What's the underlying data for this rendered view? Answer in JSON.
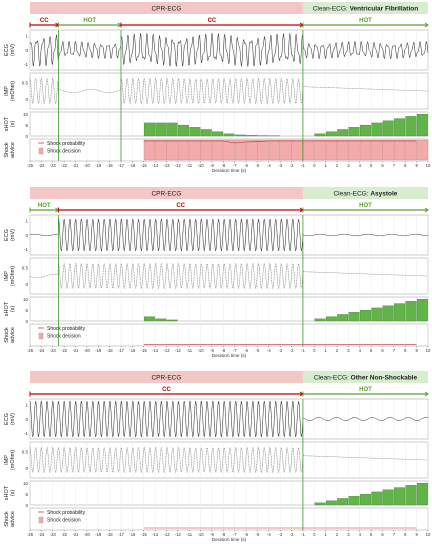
{
  "colors": {
    "cpr_band": "#f4c7c7",
    "clean_band": "#d8ecd0",
    "cc_arrow": "#c00000",
    "hot_arrow": "#5aa02c",
    "bar_fill": "#62b34a",
    "bar_stroke": "#2f7a1f",
    "shock_fill": "#f2aaaa",
    "shock_prob_line": "#b03030",
    "boundary_line": "#39a02a",
    "signal": "#222222",
    "axis": "#555555"
  },
  "chart_data": [
    {
      "type": "line",
      "title_left": "CPR-ECG",
      "title_right_prefix": "Clean-ECG: ",
      "title_right_bold": "Ventricular Fibrillation",
      "segments": [
        {
          "label": "CC",
          "kind": "cc",
          "start": -25,
          "end": -22.5
        },
        {
          "label": "HOT",
          "kind": "hot",
          "start": -22.5,
          "end": -17
        },
        {
          "label": "CC",
          "kind": "cc",
          "start": -17,
          "end": -1
        },
        {
          "label": "HOT",
          "kind": "hot",
          "start": -1,
          "end": 10
        }
      ],
      "boundaries": [
        -22.5,
        -17,
        -1
      ],
      "panels": [
        "ECG\n(mV)",
        "IMP\n(mOhm)",
        "sHOT\n(s)",
        "Shock\nadvice"
      ],
      "ecg_ticks": [
        1,
        0,
        -1
      ],
      "imp_ticks": [
        0.5,
        0
      ],
      "shot_ticks": [
        10,
        5,
        0
      ],
      "shot_bars": {
        "x": [
          -15,
          -14,
          -13,
          -12,
          -11,
          -10,
          -9,
          -8,
          -7,
          -6,
          -5,
          -4,
          0,
          1,
          2,
          3,
          4,
          5,
          6,
          7,
          8,
          9
        ],
        "values": [
          6,
          6,
          6,
          5,
          4,
          3,
          2,
          1,
          0.5,
          0.3,
          0.2,
          0.1,
          1,
          2,
          3,
          4,
          5,
          6,
          7,
          8,
          9,
          10
        ]
      },
      "shock_bars": {
        "x": [
          -15,
          -14,
          -13,
          -12,
          -11,
          -10,
          -9,
          -8,
          -7,
          -6,
          -5,
          -4,
          -3,
          -2,
          -1,
          0,
          1,
          2,
          3,
          4,
          5,
          6,
          7,
          8,
          9
        ],
        "values": [
          1,
          1,
          1,
          1,
          1,
          1,
          1,
          1,
          1,
          1,
          1,
          1,
          1,
          1,
          1,
          1,
          1,
          1,
          1,
          1,
          1,
          1,
          1,
          1,
          1
        ]
      },
      "shock_prob": [
        0.95,
        0.95,
        0.95,
        0.95,
        0.95,
        0.95,
        0.95,
        0.95,
        0.85,
        0.9,
        0.92,
        0.95,
        0.95,
        0.95,
        0.95,
        0.95,
        0.95,
        0.95,
        0.95,
        0.95,
        0.95,
        0.95,
        0.95,
        0.95,
        0.95
      ],
      "legend": [
        "Shock probability",
        "Shock decision"
      ],
      "xticks": [
        -25,
        -24,
        -23,
        -22,
        -21,
        -20,
        -19,
        -18,
        -17,
        -16,
        -15,
        -14,
        -13,
        -12,
        -11,
        -10,
        -9,
        -8,
        -7,
        -6,
        -5,
        -4,
        -3,
        -2,
        -1,
        0,
        1,
        2,
        3,
        4,
        5,
        6,
        7,
        8,
        9,
        10
      ],
      "xlabel": "Decision time (s)",
      "xlim": [
        -25,
        10
      ]
    },
    {
      "type": "line",
      "title_left": "CPR-ECG",
      "title_right_prefix": "Clean-ECG: ",
      "title_right_bold": "Asystole",
      "segments": [
        {
          "label": "HOT",
          "kind": "hot",
          "start": -25,
          "end": -22.5
        },
        {
          "label": "CC",
          "kind": "cc",
          "start": -22.5,
          "end": -1
        },
        {
          "label": "HOT",
          "kind": "hot",
          "start": -1,
          "end": 10
        }
      ],
      "boundaries": [
        -22.5,
        -1
      ],
      "panels": [
        "ECG\n(mV)",
        "IMP\n(mOhm)",
        "sHOT\n(s)",
        "Shock\nadvice"
      ],
      "ecg_ticks": [
        1,
        0,
        -1
      ],
      "imp_ticks": [
        0.5,
        0
      ],
      "shot_ticks": [
        10,
        5,
        0
      ],
      "shot_bars": {
        "x": [
          -15,
          -14,
          -13,
          0,
          1,
          2,
          3,
          4,
          5,
          6,
          7,
          8,
          9
        ],
        "values": [
          2,
          1,
          0.5,
          1,
          2,
          3,
          4,
          5,
          6,
          7,
          8,
          9,
          10
        ]
      },
      "shock_bars": {
        "x": [],
        "values": []
      },
      "shock_prob": [
        0.03,
        0.03,
        0.03,
        0.03,
        0.03,
        0.03,
        0.03,
        0.03,
        0.03,
        0.03,
        0.03,
        0.03,
        0.03,
        0.03,
        0.03,
        0.03,
        0.03,
        0.03,
        0.03,
        0.03,
        0.03,
        0.03,
        0.03,
        0.03,
        0.03
      ],
      "legend": [
        "Shock probability",
        "Shock decision"
      ],
      "xticks": [
        -25,
        -24,
        -23,
        -22,
        -21,
        -20,
        -19,
        -18,
        -17,
        -16,
        -15,
        -14,
        -13,
        -12,
        -11,
        -10,
        -9,
        -8,
        -7,
        -6,
        -5,
        -4,
        -3,
        -2,
        -1,
        0,
        1,
        2,
        3,
        4,
        5,
        6,
        7,
        8,
        9,
        10
      ],
      "xlabel": "Decision time (s)",
      "xlim": [
        -25,
        10
      ]
    },
    {
      "type": "line",
      "title_left": "CPR-ECG",
      "title_right_prefix": "Clean-ECG: ",
      "title_right_bold": "Other Non-Shockable",
      "segments": [
        {
          "label": "CC",
          "kind": "cc",
          "start": -25,
          "end": -1
        },
        {
          "label": "HOT",
          "kind": "hot",
          "start": -1,
          "end": 10
        }
      ],
      "boundaries": [
        -1
      ],
      "panels": [
        "ECG\n(mV)",
        "IMP\n(mOhm)",
        "sHOT\n(s)",
        "Shock\nadvice"
      ],
      "ecg_ticks": [
        1,
        0,
        -1
      ],
      "imp_ticks": [
        0.5,
        0
      ],
      "shot_ticks": [
        10,
        5,
        0
      ],
      "shot_bars": {
        "x": [
          0,
          1,
          2,
          3,
          4,
          5,
          6,
          7,
          8,
          9
        ],
        "values": [
          1,
          2,
          3,
          4,
          5,
          6,
          7,
          8,
          9,
          10
        ]
      },
      "shock_bars": {
        "x": [],
        "values": []
      },
      "shock_prob": [
        0.05,
        0.05,
        0.05,
        0.05,
        0.05,
        0.05,
        0.05,
        0.05,
        0.05,
        0.05,
        0.05,
        0.05,
        0.05,
        0.05,
        0.05,
        0.05,
        0.05,
        0.05,
        0.05,
        0.05,
        0.05,
        0.05,
        0.05,
        0.05,
        0.05
      ],
      "legend": [
        "Shock probability",
        "Shock decision"
      ],
      "xticks": [
        -25,
        -24,
        -23,
        -22,
        -21,
        -20,
        -19,
        -18,
        -17,
        -16,
        -15,
        -14,
        -13,
        -12,
        -11,
        -10,
        -9,
        -8,
        -7,
        -6,
        -5,
        -4,
        -3,
        -2,
        -1,
        0,
        1,
        2,
        3,
        4,
        5,
        6,
        7,
        8,
        9,
        10
      ],
      "xlabel": "Decision time (s)",
      "xlim": [
        -25,
        10
      ]
    }
  ]
}
